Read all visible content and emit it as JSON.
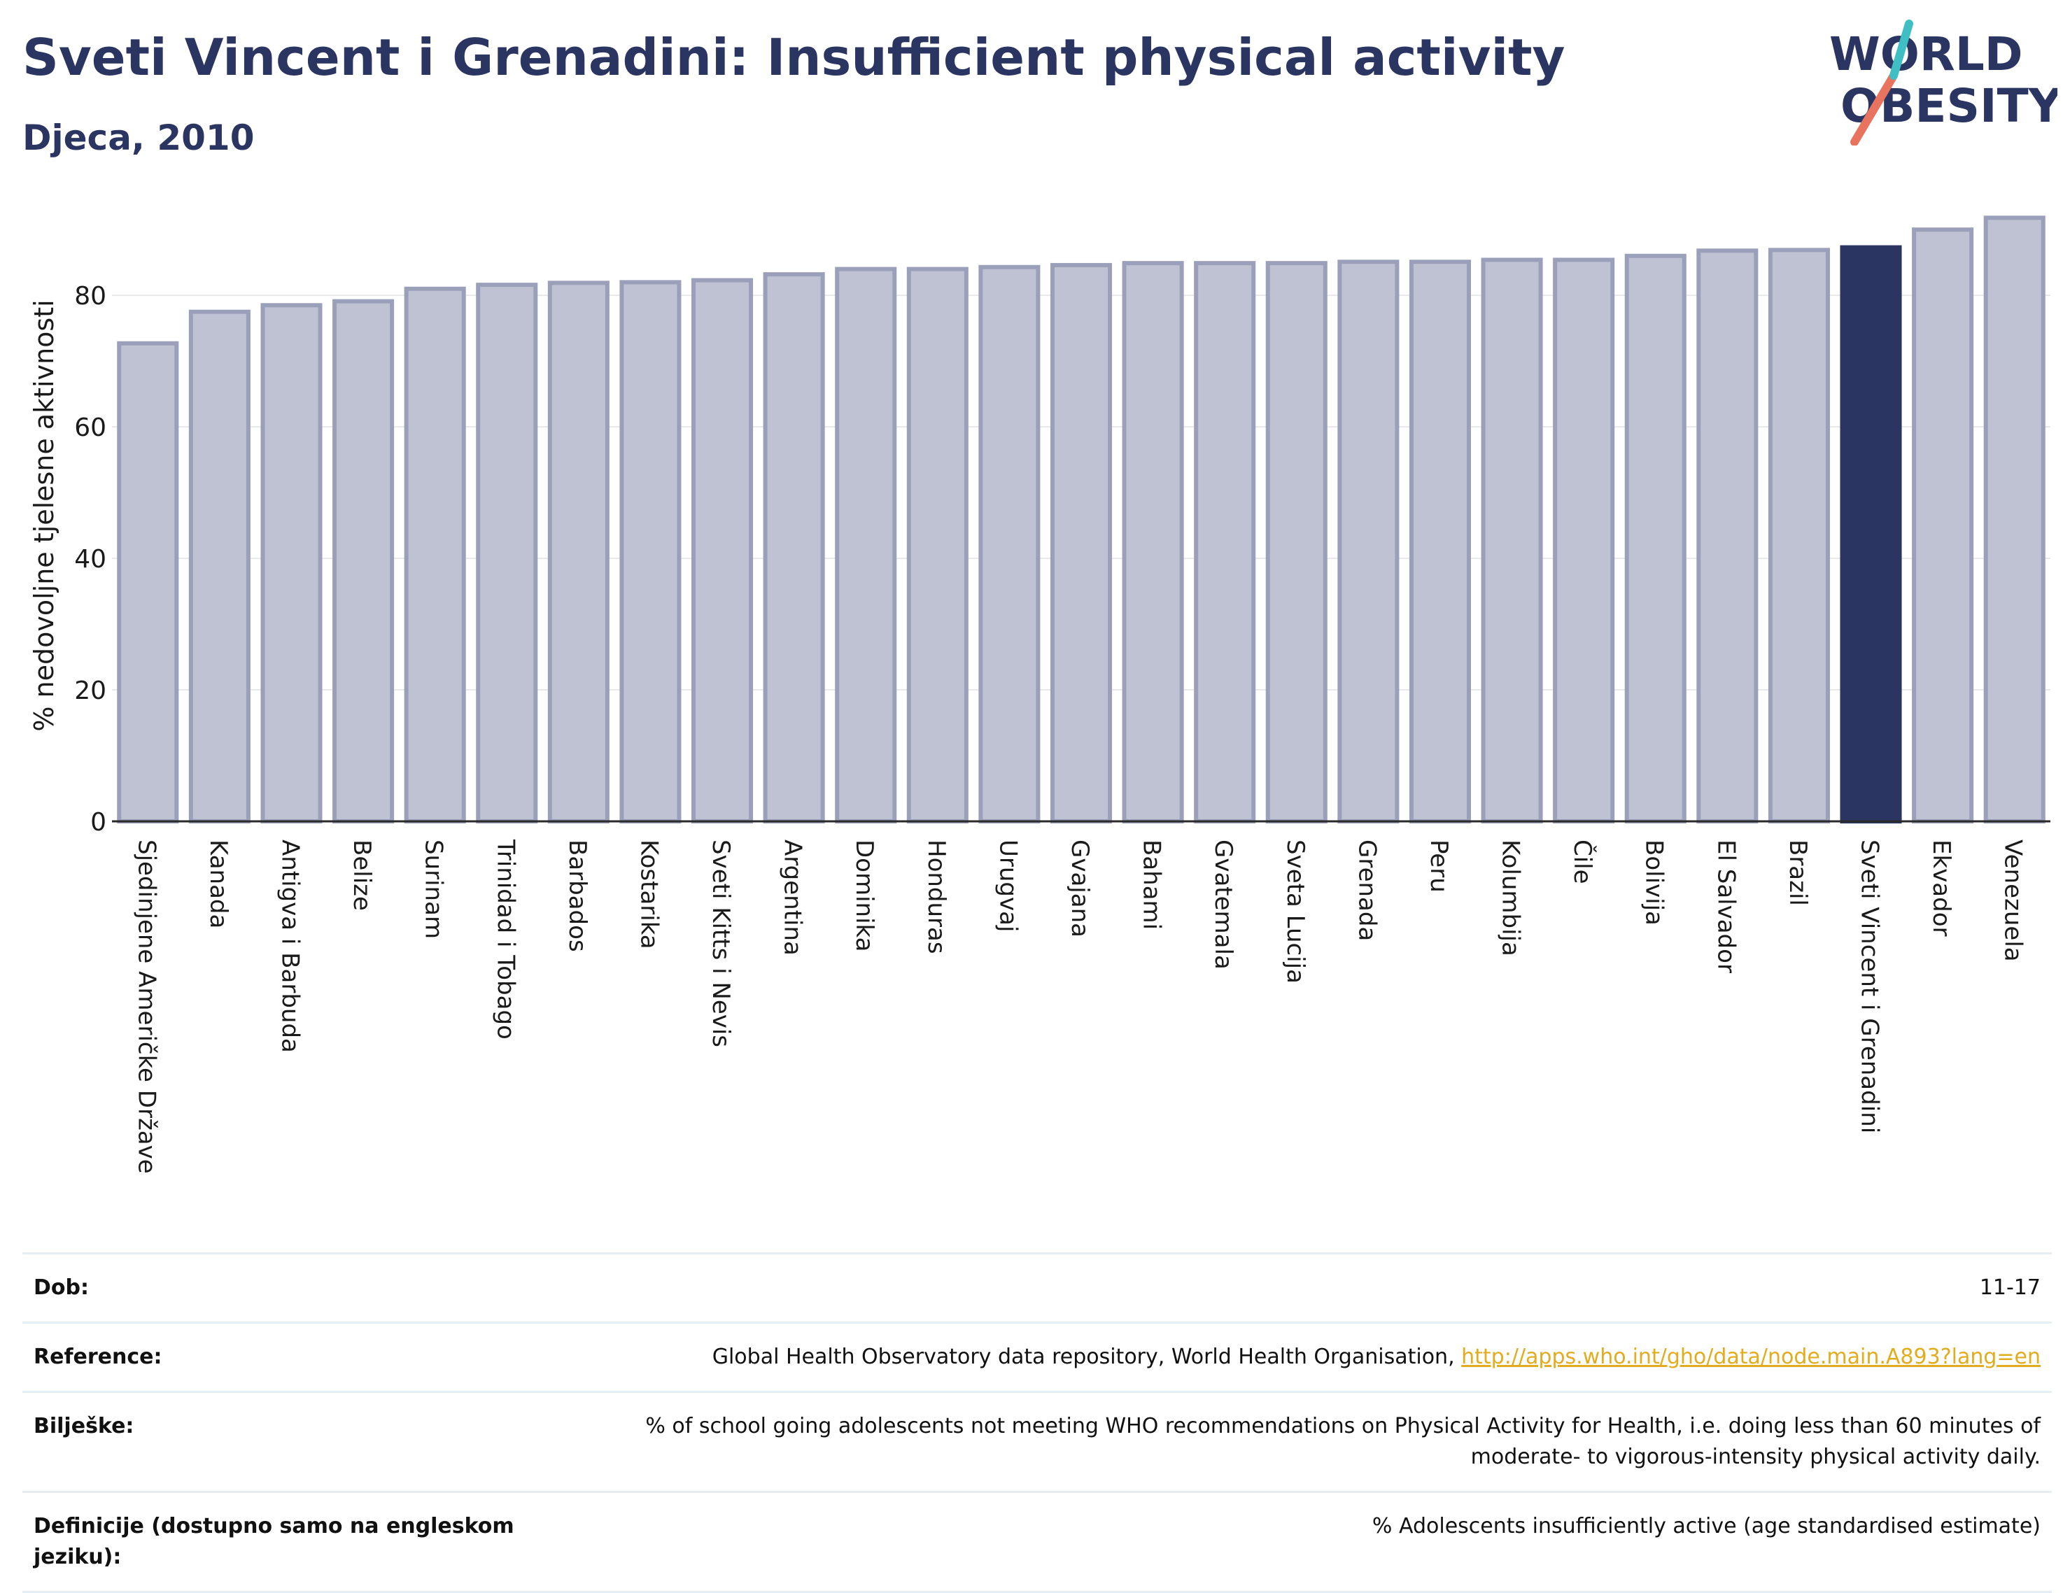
{
  "header": {
    "title": "Sveti Vincent i Grenadini: Insufficient physical activity",
    "subtitle": "Djeca, 2010"
  },
  "logo": {
    "line1": "WORLD",
    "line2": "OBESITY",
    "brand_color": "#2b3561",
    "slash_colors": [
      "#e8735f",
      "#3fbfc4"
    ]
  },
  "chart_data": {
    "type": "bar",
    "title": "Sveti Vincent i Grenadini: Insufficient physical activity",
    "subtitle": "Djeca, 2010",
    "xlabel": "",
    "ylabel": "% nedovoljne tjelesne aktivnosti",
    "ylim": [
      0,
      93
    ],
    "yticks": [
      0,
      20,
      40,
      60,
      80
    ],
    "grid": "horizontal",
    "highlight": "Sveti Vincent i Grenadini",
    "colors": {
      "bar": "#bfc2d2",
      "bar_edge": "#9ba0ba",
      "highlight": "#2b3561"
    },
    "categories": [
      "Sjedinjene Američke Države",
      "Kanada",
      "Antigva i Barbuda",
      "Belize",
      "Surinam",
      "Trinidad i Tobago",
      "Barbados",
      "Kostarika",
      "Sveti Kitts i Nevis",
      "Argentina",
      "Dominika",
      "Honduras",
      "Urugvaj",
      "Gvajana",
      "Bahami",
      "Gvatemala",
      "Sveta Lucija",
      "Grenada",
      "Peru",
      "Kolumbija",
      "Čile",
      "Bolivija",
      "El Salvador",
      "Brazil",
      "Sveti Vincent i Grenadini",
      "Ekvador",
      "Venezuela"
    ],
    "values": [
      72.7,
      77.5,
      78.5,
      79.1,
      81.0,
      81.6,
      81.9,
      82.0,
      82.3,
      83.2,
      84.0,
      84.0,
      84.3,
      84.6,
      84.9,
      84.9,
      84.9,
      85.1,
      85.1,
      85.4,
      85.4,
      86.0,
      86.8,
      86.9,
      87.3,
      90.0,
      91.8
    ]
  },
  "info": {
    "rows": [
      {
        "label": "Dob:",
        "value": "11-17"
      },
      {
        "label": "Reference:",
        "value": "Global Health Observatory data repository, World Health Organisation, ",
        "link": "http://apps.who.int/gho/data/node.main.A893?lang=en"
      },
      {
        "label": "Bilješke:",
        "value": "% of school going adolescents not meeting WHO recommendations on Physical Activity for Health, i.e. doing less than 60 minutes of moderate- to vigorous-intensity physical activity daily."
      },
      {
        "label": "Definicije (dostupno samo na engleskom jeziku):",
        "value": "% Adolescents insufficiently active (age standardised estimate)"
      }
    ]
  }
}
